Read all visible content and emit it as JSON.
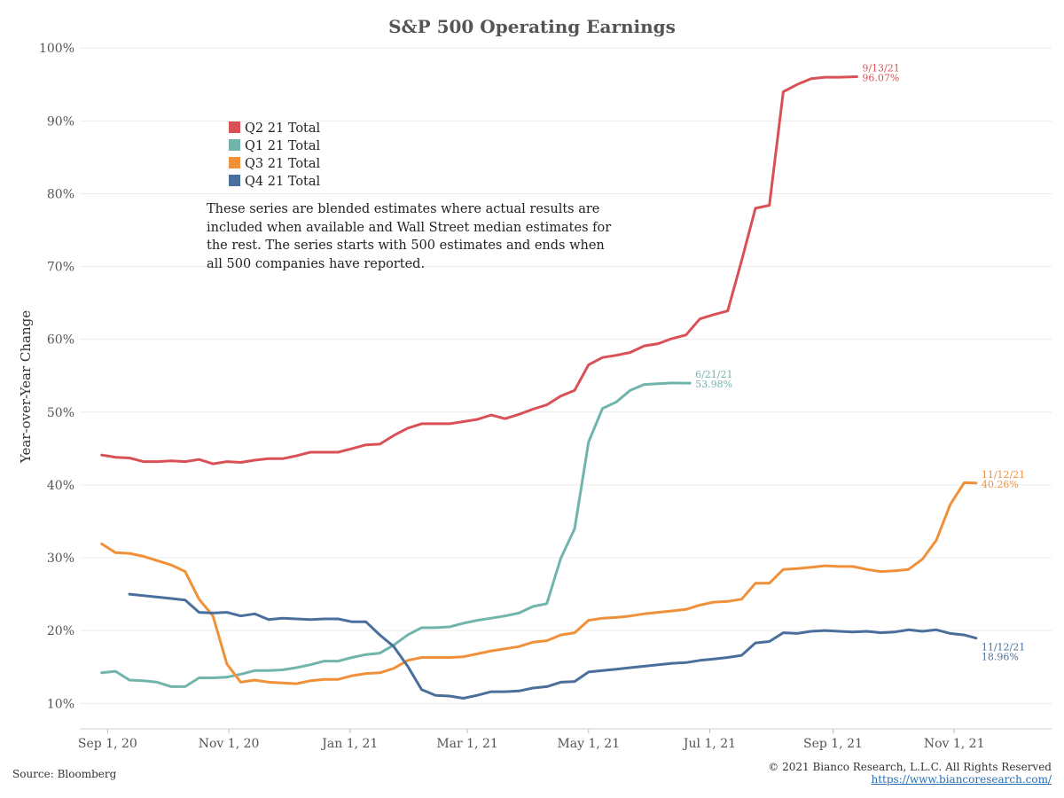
{
  "chart_data": {
    "type": "line",
    "title": "S&P 500 Operating Earnings",
    "ylabel": "Year-over-Year Change",
    "xlabel": "",
    "ylim": [
      6.5,
      101
    ],
    "xlim": [
      "2020-08-18",
      "2021-12-20"
    ],
    "y_ticks": [
      10,
      20,
      30,
      40,
      50,
      60,
      70,
      80,
      90,
      100
    ],
    "y_tick_labels": [
      "10%",
      "20%",
      "30%",
      "40%",
      "50%",
      "60%",
      "70%",
      "80%",
      "90%",
      "100%"
    ],
    "x_ticks": [
      "2020-09-01",
      "2020-11-01",
      "2021-01-01",
      "2021-03-01",
      "2021-05-01",
      "2021-07-01",
      "2021-09-01",
      "2021-11-01"
    ],
    "x_tick_labels": [
      "Sep 1, 20",
      "Nov 1, 20",
      "Jan 1, 21",
      "Mar 1, 21",
      "May 1, 21",
      "Jul 1, 21",
      "Sep 1, 21",
      "Nov 1, 21"
    ],
    "grid": true,
    "legend_position": "top-left",
    "note": "These series are blended estimates where actual results are included when available and Wall Street median estimates for the rest.  The series starts with 500 estimates and ends when all 500 companies have reported.",
    "series": [
      {
        "name": "Q2 21 Total",
        "color": "#d95156",
        "end_label_date": "9/13/21",
        "end_label_value": "96.07%",
        "x": [
          "2020-08-29",
          "2020-09-05",
          "2020-09-12",
          "2020-09-19",
          "2020-09-26",
          "2020-10-03",
          "2020-10-10",
          "2020-10-17",
          "2020-10-24",
          "2020-10-31",
          "2020-11-07",
          "2020-11-14",
          "2020-11-21",
          "2020-11-28",
          "2020-12-05",
          "2020-12-12",
          "2020-12-19",
          "2020-12-26",
          "2021-01-02",
          "2021-01-09",
          "2021-01-16",
          "2021-01-23",
          "2021-01-30",
          "2021-02-06",
          "2021-02-13",
          "2021-02-20",
          "2021-02-27",
          "2021-03-06",
          "2021-03-13",
          "2021-03-20",
          "2021-03-27",
          "2021-04-03",
          "2021-04-10",
          "2021-04-17",
          "2021-04-24",
          "2021-05-01",
          "2021-05-08",
          "2021-05-15",
          "2021-05-22",
          "2021-05-29",
          "2021-06-05",
          "2021-06-12",
          "2021-06-19",
          "2021-06-26",
          "2021-07-03",
          "2021-07-10",
          "2021-07-17",
          "2021-07-24",
          "2021-07-31",
          "2021-08-07",
          "2021-08-14",
          "2021-08-21",
          "2021-08-28",
          "2021-09-04",
          "2021-09-13"
        ],
        "values": [
          44.1,
          43.8,
          43.7,
          43.2,
          43.2,
          43.3,
          43.2,
          43.5,
          42.9,
          43.2,
          43.1,
          43.4,
          43.6,
          43.6,
          44.0,
          44.5,
          44.5,
          44.5,
          45.0,
          45.5,
          45.6,
          46.8,
          47.8,
          48.4,
          48.4,
          48.4,
          48.7,
          49.0,
          49.6,
          49.1,
          49.7,
          50.4,
          51.0,
          52.2,
          53.0,
          56.5,
          57.5,
          57.8,
          58.2,
          59.1,
          59.4,
          60.1,
          60.6,
          62.8,
          63.4,
          63.9,
          70.8,
          78.0,
          78.4,
          94.0,
          95.0,
          95.8,
          96.0,
          96.0,
          96.07
        ]
      },
      {
        "name": "Q1 21 Total",
        "color": "#70b4ac",
        "end_label_date": "6/21/21",
        "end_label_value": "53.98%",
        "x": [
          "2020-08-29",
          "2020-09-05",
          "2020-09-12",
          "2020-09-19",
          "2020-09-26",
          "2020-10-03",
          "2020-10-10",
          "2020-10-17",
          "2020-10-24",
          "2020-10-31",
          "2020-11-07",
          "2020-11-14",
          "2020-11-21",
          "2020-11-28",
          "2020-12-05",
          "2020-12-12",
          "2020-12-19",
          "2020-12-26",
          "2021-01-02",
          "2021-01-09",
          "2021-01-16",
          "2021-01-23",
          "2021-01-30",
          "2021-02-06",
          "2021-02-13",
          "2021-02-20",
          "2021-02-27",
          "2021-03-06",
          "2021-03-13",
          "2021-03-20",
          "2021-03-27",
          "2021-04-03",
          "2021-04-10",
          "2021-04-17",
          "2021-04-24",
          "2021-05-01",
          "2021-05-08",
          "2021-05-15",
          "2021-05-22",
          "2021-05-29",
          "2021-06-05",
          "2021-06-12",
          "2021-06-21"
        ],
        "values": [
          14.2,
          14.4,
          13.2,
          13.1,
          12.9,
          12.3,
          12.3,
          13.5,
          13.5,
          13.6,
          14.0,
          14.5,
          14.5,
          14.6,
          14.9,
          15.3,
          15.8,
          15.8,
          16.3,
          16.7,
          16.9,
          18.0,
          19.4,
          20.4,
          20.4,
          20.5,
          21.0,
          21.4,
          21.7,
          22.0,
          22.4,
          23.3,
          23.7,
          29.9,
          34.0,
          45.9,
          50.5,
          51.4,
          53.0,
          53.8,
          53.9,
          54.0,
          53.98
        ]
      },
      {
        "name": "Q3 21 Total",
        "color": "#f0913a",
        "end_label_date": "11/12/21",
        "end_label_value": "40.26%",
        "x": [
          "2020-08-29",
          "2020-09-05",
          "2020-09-12",
          "2020-09-19",
          "2020-09-26",
          "2020-10-03",
          "2020-10-10",
          "2020-10-17",
          "2020-10-24",
          "2020-10-31",
          "2020-11-07",
          "2020-11-14",
          "2020-11-21",
          "2020-11-28",
          "2020-12-05",
          "2020-12-12",
          "2020-12-19",
          "2020-12-26",
          "2021-01-02",
          "2021-01-09",
          "2021-01-16",
          "2021-01-23",
          "2021-01-30",
          "2021-02-06",
          "2021-02-13",
          "2021-02-20",
          "2021-02-27",
          "2021-03-06",
          "2021-03-13",
          "2021-03-20",
          "2021-03-27",
          "2021-04-03",
          "2021-04-10",
          "2021-04-17",
          "2021-04-24",
          "2021-05-01",
          "2021-05-08",
          "2021-05-15",
          "2021-05-22",
          "2021-05-29",
          "2021-06-05",
          "2021-06-12",
          "2021-06-19",
          "2021-06-26",
          "2021-07-03",
          "2021-07-10",
          "2021-07-17",
          "2021-07-24",
          "2021-07-31",
          "2021-08-07",
          "2021-08-14",
          "2021-08-21",
          "2021-08-28",
          "2021-09-04",
          "2021-09-11",
          "2021-09-18",
          "2021-09-25",
          "2021-10-02",
          "2021-10-09",
          "2021-10-16",
          "2021-10-23",
          "2021-10-30",
          "2021-11-06",
          "2021-11-12"
        ],
        "values": [
          31.9,
          30.7,
          30.6,
          30.2,
          29.6,
          29.0,
          28.1,
          24.3,
          22.0,
          15.4,
          12.9,
          13.2,
          12.9,
          12.8,
          12.7,
          13.1,
          13.3,
          13.3,
          13.8,
          14.1,
          14.2,
          14.8,
          15.9,
          16.3,
          16.3,
          16.3,
          16.4,
          16.8,
          17.2,
          17.5,
          17.8,
          18.4,
          18.6,
          19.4,
          19.7,
          21.4,
          21.7,
          21.8,
          22.0,
          22.3,
          22.5,
          22.7,
          22.9,
          23.5,
          23.9,
          24.0,
          24.3,
          26.5,
          26.5,
          28.4,
          28.5,
          28.7,
          28.9,
          28.8,
          28.8,
          28.4,
          28.1,
          28.2,
          28.4,
          29.8,
          32.4,
          37.3,
          40.3,
          40.26
        ]
      },
      {
        "name": "Q4 21 Total",
        "color": "#4a6f9c",
        "end_label_date": "11/12/21",
        "end_label_value": "18.96%",
        "x": [
          "2020-09-12",
          "2020-09-19",
          "2020-09-26",
          "2020-10-03",
          "2020-10-10",
          "2020-10-17",
          "2020-10-24",
          "2020-10-31",
          "2020-11-07",
          "2020-11-14",
          "2020-11-21",
          "2020-11-28",
          "2020-12-05",
          "2020-12-12",
          "2020-12-19",
          "2020-12-26",
          "2021-01-02",
          "2021-01-09",
          "2021-01-16",
          "2021-01-23",
          "2021-01-30",
          "2021-02-06",
          "2021-02-13",
          "2021-02-20",
          "2021-02-27",
          "2021-03-06",
          "2021-03-13",
          "2021-03-20",
          "2021-03-27",
          "2021-04-03",
          "2021-04-10",
          "2021-04-17",
          "2021-04-24",
          "2021-05-01",
          "2021-05-08",
          "2021-05-15",
          "2021-05-22",
          "2021-05-29",
          "2021-06-05",
          "2021-06-12",
          "2021-06-19",
          "2021-06-26",
          "2021-07-03",
          "2021-07-10",
          "2021-07-17",
          "2021-07-24",
          "2021-07-31",
          "2021-08-07",
          "2021-08-14",
          "2021-08-21",
          "2021-08-28",
          "2021-09-04",
          "2021-09-11",
          "2021-09-18",
          "2021-09-25",
          "2021-10-02",
          "2021-10-09",
          "2021-10-16",
          "2021-10-23",
          "2021-10-30",
          "2021-11-06",
          "2021-11-12"
        ],
        "values": [
          25.0,
          24.8,
          24.6,
          24.4,
          24.2,
          22.5,
          22.4,
          22.5,
          22.0,
          22.3,
          21.5,
          21.7,
          21.6,
          21.5,
          21.6,
          21.6,
          21.2,
          21.2,
          19.4,
          17.8,
          15.1,
          11.9,
          11.1,
          11.0,
          10.7,
          11.1,
          11.6,
          11.6,
          11.7,
          12.1,
          12.3,
          12.9,
          13.0,
          14.3,
          14.5,
          14.7,
          14.9,
          15.1,
          15.3,
          15.5,
          15.6,
          15.9,
          16.1,
          16.3,
          16.6,
          18.3,
          18.5,
          19.7,
          19.6,
          19.9,
          20.0,
          19.9,
          19.8,
          19.9,
          19.7,
          19.8,
          20.1,
          19.9,
          20.1,
          19.6,
          19.4,
          18.96
        ]
      }
    ]
  },
  "source": "Source: Bloomberg",
  "copyright": "© 2021 Bianco Research, L.L.C. All Rights Reserved",
  "website": "https://www.biancoresearch.com/"
}
